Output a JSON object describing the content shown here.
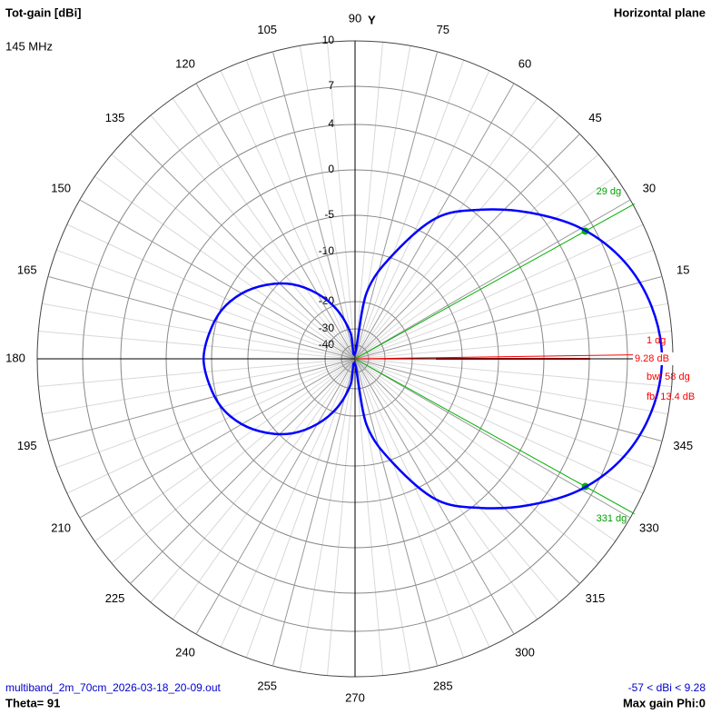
{
  "chart_data": {
    "type": "polar",
    "title": "Tot-gain [dBi]",
    "subtitle": "145 MHz",
    "y_axis_label": "Y",
    "plane": "Horizontal plane",
    "x": [
      0,
      10,
      20,
      30,
      40,
      50,
      60,
      70,
      80,
      90,
      100,
      110,
      120,
      130,
      140,
      150,
      160,
      170,
      180,
      190,
      200,
      210,
      220,
      230,
      240,
      250,
      260,
      270,
      280,
      290,
      300,
      310,
      320,
      330,
      340,
      350
    ],
    "values": [
      9.28,
      8.9,
      7.9,
      6.1,
      3.4,
      0.5,
      -2.9,
      -9.5,
      -18,
      -45,
      -32,
      -22,
      -16.4,
      -12,
      -8.9,
      -6.75,
      -5.2,
      -4.5,
      -4.12,
      -4.5,
      -5.2,
      -6.75,
      -8.9,
      -12,
      -16.4,
      -22,
      -32,
      -45,
      -18,
      -9.5,
      -2.9,
      0.5,
      3.4,
      6.1,
      7.9,
      8.9
    ],
    "color": "#0000ff",
    "xlim": [
      0,
      360
    ],
    "xticks": [
      15,
      30,
      45,
      60,
      75,
      90,
      105,
      120,
      135,
      150,
      165,
      180,
      195,
      210,
      225,
      240,
      255,
      270,
      285,
      300,
      315,
      330,
      345
    ],
    "yticks": [
      10,
      7,
      4,
      0,
      -5,
      -10,
      -20,
      -30,
      -40
    ],
    "grid": true,
    "markers": {
      "max_direction": "1 dg",
      "max_gain": "9.28 dB",
      "beamwidth": "bw: 58 dg",
      "front_back": "fb: 13.4 dB",
      "half_power": [
        {
          "value": 29,
          "label": "29 dg"
        },
        {
          "value": 331,
          "label": "331 dg"
        }
      ]
    },
    "footer": {
      "file": "multiband_2m_70cm_2026-03-18_20-09.out",
      "theta": "Theta= 91",
      "range": "-57 < dBi < 9.28",
      "max_gain_phi": "Max gain Phi:0"
    }
  }
}
